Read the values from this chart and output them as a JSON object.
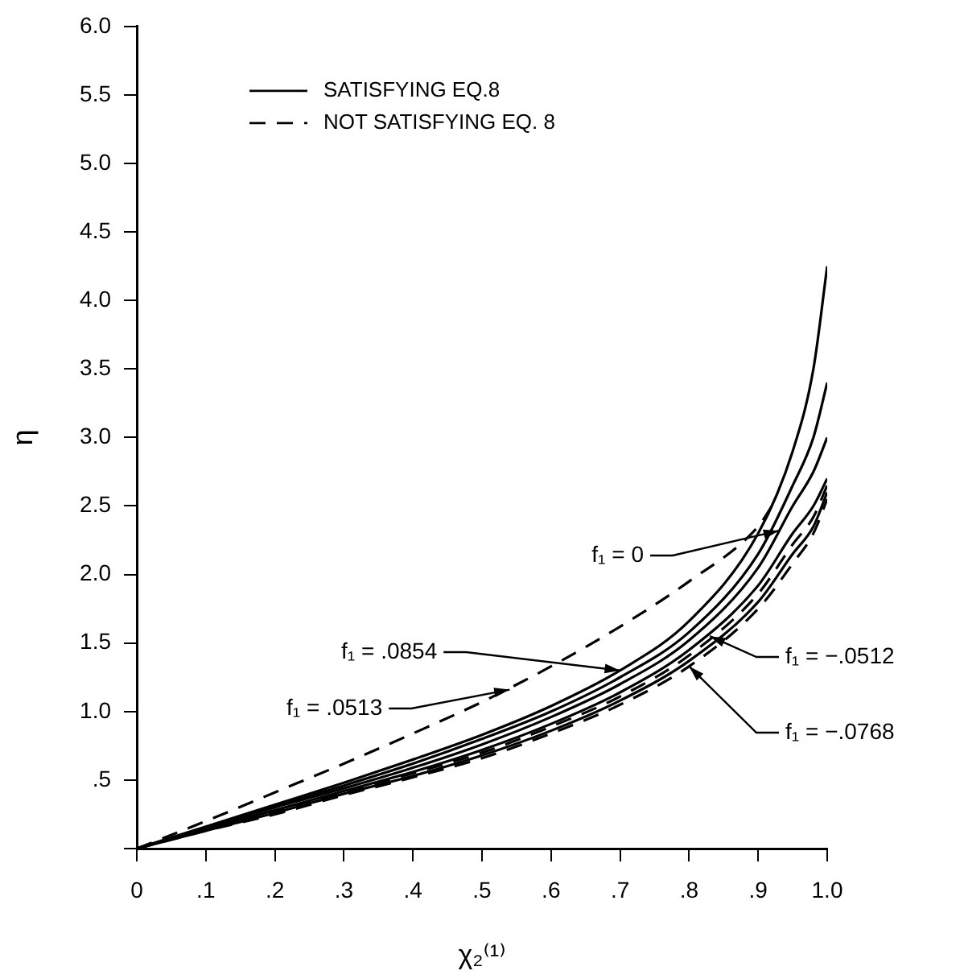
{
  "chart_data": {
    "type": "line",
    "xlabel": "χ₂⁽¹⁾",
    "ylabel": "η",
    "x": [
      0,
      0.1,
      0.2,
      0.3,
      0.4,
      0.5,
      0.6,
      0.7,
      0.8,
      0.9,
      0.95,
      0.98,
      1.0
    ],
    "series": [
      {
        "name": "SATISFYING EQ.8",
        "color": "#000000",
        "line_style": "solid",
        "values": [
          0,
          0.16,
          0.32,
          0.48,
          0.65,
          0.83,
          1.04,
          1.3,
          1.66,
          2.3,
          2.9,
          3.5,
          4.25
        ]
      },
      {
        "color": "#000000",
        "line_style": "solid",
        "values": [
          0,
          0.15,
          0.31,
          0.46,
          0.62,
          0.8,
          1.0,
          1.25,
          1.58,
          2.15,
          2.65,
          3.0,
          3.4
        ]
      },
      {
        "color": "#000000",
        "line_style": "solid",
        "values": [
          0,
          0.15,
          0.3,
          0.44,
          0.59,
          0.76,
          0.96,
          1.2,
          1.52,
          2.05,
          2.5,
          2.75,
          3.0
        ]
      },
      {
        "color": "#000000",
        "line_style": "solid",
        "values": [
          0,
          0.14,
          0.28,
          0.42,
          0.56,
          0.72,
          0.91,
          1.14,
          1.45,
          1.92,
          2.3,
          2.5,
          2.7
        ]
      },
      {
        "color": "#000000",
        "line_style": "solid",
        "values": [
          0,
          0.13,
          0.26,
          0.4,
          0.53,
          0.68,
          0.86,
          1.08,
          1.37,
          1.8,
          2.15,
          2.35,
          2.6
        ]
      },
      {
        "name": "NOT SATISFYING EQ. 8",
        "color": "#000000",
        "line_style": "dashed",
        "x": [
          0,
          0.1,
          0.2,
          0.3,
          0.4,
          0.5,
          0.6,
          0.7,
          0.8,
          0.9,
          0.92
        ],
        "values": [
          0,
          0.2,
          0.41,
          0.62,
          0.84,
          1.07,
          1.33,
          1.62,
          1.95,
          2.35,
          2.5
        ]
      },
      {
        "color": "#000000",
        "line_style": "dashed",
        "values": [
          0,
          0.14,
          0.27,
          0.41,
          0.55,
          0.7,
          0.89,
          1.11,
          1.41,
          1.86,
          2.22,
          2.42,
          2.65
        ]
      },
      {
        "color": "#000000",
        "line_style": "dashed",
        "values": [
          0,
          0.13,
          0.25,
          0.39,
          0.52,
          0.66,
          0.84,
          1.05,
          1.33,
          1.75,
          2.08,
          2.3,
          2.55
        ]
      }
    ],
    "xlim": [
      0,
      1.0
    ],
    "xticks": [
      0,
      {
        "value": 0.1,
        "label": ".1"
      },
      {
        "value": 0.2,
        "label": ".2"
      },
      {
        "value": 0.3,
        "label": ".3"
      },
      {
        "value": 0.4,
        "label": ".4"
      },
      {
        "value": 0.5,
        "label": ".5"
      },
      {
        "value": 0.6,
        "label": ".6"
      },
      {
        "value": 0.7,
        "label": ".7"
      },
      {
        "value": 0.8,
        "label": ".8"
      },
      {
        "value": 0.9,
        "label": ".9"
      },
      {
        "value": 1.0,
        "label": "1.0"
      }
    ],
    "ylim": [
      0,
      6.0
    ],
    "yticks": [
      {
        "value": 0,
        "label": null
      },
      {
        "value": 0.5,
        "label": ".5"
      },
      {
        "value": 1.0,
        "label": "1.0"
      },
      {
        "value": 1.5,
        "label": "1.5"
      },
      {
        "value": 2.0,
        "label": "2.0"
      },
      {
        "value": 2.5,
        "label": "2.5"
      },
      {
        "value": 3.0,
        "label": "3.0"
      },
      {
        "value": 3.5,
        "label": "3.5"
      },
      {
        "value": 4.0,
        "label": "4.0"
      },
      {
        "value": 4.5,
        "label": "4.5"
      },
      {
        "value": 5.0,
        "label": "5.0"
      },
      {
        "value": 5.5,
        "label": "5.5"
      },
      {
        "value": 6.0,
        "label": "6.0"
      }
    ],
    "grid": false,
    "legend": "top left",
    "marker": "none",
    "annotations": [
      {
        "text": "f₁ = 0",
        "x": 0.93,
        "y": 2.32
      },
      {
        "text": "f₁ = .0854",
        "x": 0.7,
        "y": 1.3
      },
      {
        "text": "f₁ = .0513",
        "x": 0.54,
        "y": 1.16
      },
      {
        "text": "f₁ = −.0512",
        "x": 0.83,
        "y": 1.55
      },
      {
        "text": "f₁ = −.0768",
        "x": 0.8,
        "y": 1.33
      }
    ]
  }
}
